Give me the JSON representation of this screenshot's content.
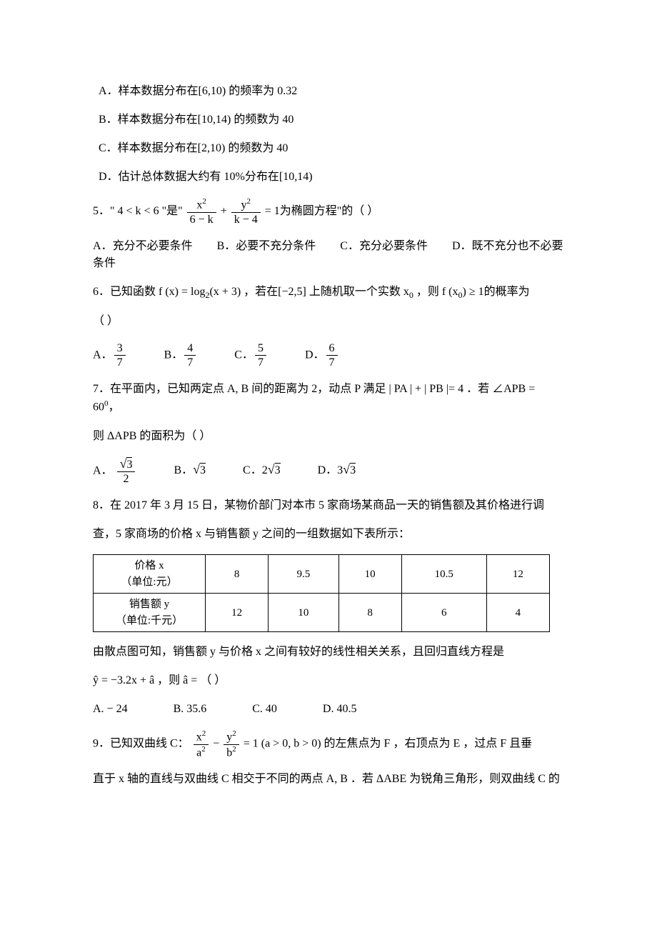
{
  "q4": {
    "opt_a": "A．样本数据分布在[6,10) 的频率为 0.32",
    "opt_b": "B．样本数据分布在[10,14) 的频数为 40",
    "opt_c": "C．样本数据分布在[2,10) 的频数为 40",
    "opt_d": "D．估计总体数据大约有 10%分布在[10,14)"
  },
  "q5": {
    "pre": "5．\" 4 < k < 6 \"是\"",
    "eq_lhs_num1": "x",
    "eq_lhs_den1": "6 − k",
    "eq_lhs_num2": "y",
    "eq_lhs_den2": "k − 4",
    "post": " = 1为椭圆方程\"的（     ）",
    "a_lbl": "A．",
    "a_txt": "充分不必要条件",
    "b_lbl": "B．",
    "b_txt": "必要不充分条件",
    "c_lbl": "C．",
    "c_txt": "充分必要条件",
    "d_lbl": "D．",
    "d_txt": "既不充分也不必要条件"
  },
  "q6": {
    "pre": "6．已知函数 ",
    "fx": "f (x) = log",
    "logbase": "2",
    "logarg": "(x + 3)",
    "mid": "，若在[−2,5] 上随机取一个实数 x",
    "x0sub": "0",
    "post1": " ，则 f (x",
    "post1b": ")  ≥ 1的概率为",
    "line2": "（     ）",
    "a_lbl": "A．",
    "a_num": "3",
    "a_den": "7",
    "b_lbl": "B．",
    "b_num": "4",
    "b_den": "7",
    "c_lbl": "C．",
    "c_num": "5",
    "c_den": "7",
    "d_lbl": "D．",
    "d_num": "6",
    "d_den": "7"
  },
  "q7": {
    "line1a": "7．在平面内，已知两定点 A, B 间的距离为 2，动点 P 满足 | PA | + | PB |= 4 ．若 ∠APB = 60",
    "deg": "0",
    "comma": "，",
    "line2": "则 ΔAPB 的面积为（     ）",
    "a_lbl": "A．",
    "a_num": "3",
    "a_den": "2",
    "b_lbl": "B．",
    "b_val": "3",
    "c_lbl": "C．",
    "c_coef": "2",
    "c_val": "3",
    "d_lbl": "D．",
    "d_coef": "3",
    "d_val": "3"
  },
  "q8": {
    "line1": "8．在 2017 年 3 月 15 日，某物价部门对本市 5 家商场某商品一天的销售额及其价格进行调",
    "line2": "查，5 家商场的价格 x 与销售额 y 之间的一组数据如下表所示：",
    "hdr1a": "价格 x",
    "hdr1b": "（单位:元）",
    "hdr2a": "销售额 y",
    "hdr2b": "（单位:千元）",
    "row1": [
      "8",
      "9.5",
      "10",
      "10.5",
      "12"
    ],
    "row2": [
      "12",
      "10",
      "8",
      "6",
      "4"
    ],
    "line3": "由散点图可知，销售额 y 与价格 x 之间有较好的线性相关关系，且回归直线方程是",
    "line4_pre": " ŷ = −3.2x + â ，则 â = （     ）",
    "a": "A.  − 24",
    "b": "B.  35.6",
    "c": "C.  40",
    "d": "D.  40.5"
  },
  "q9": {
    "line1_pre": "9．已知双曲线 C：",
    "num1": "x",
    "den1": "a",
    "num2": "y",
    "den2": "b",
    "line1_post": "= 1 (a > 0, b > 0) 的左焦点为 F ，右顶点为 E ，过点 F 且垂",
    "line2": "直于 x 轴的直线与双曲线 C 相交于不同的两点 A, B ．若 ΔABE 为锐角三角形，则双曲线 C 的"
  }
}
